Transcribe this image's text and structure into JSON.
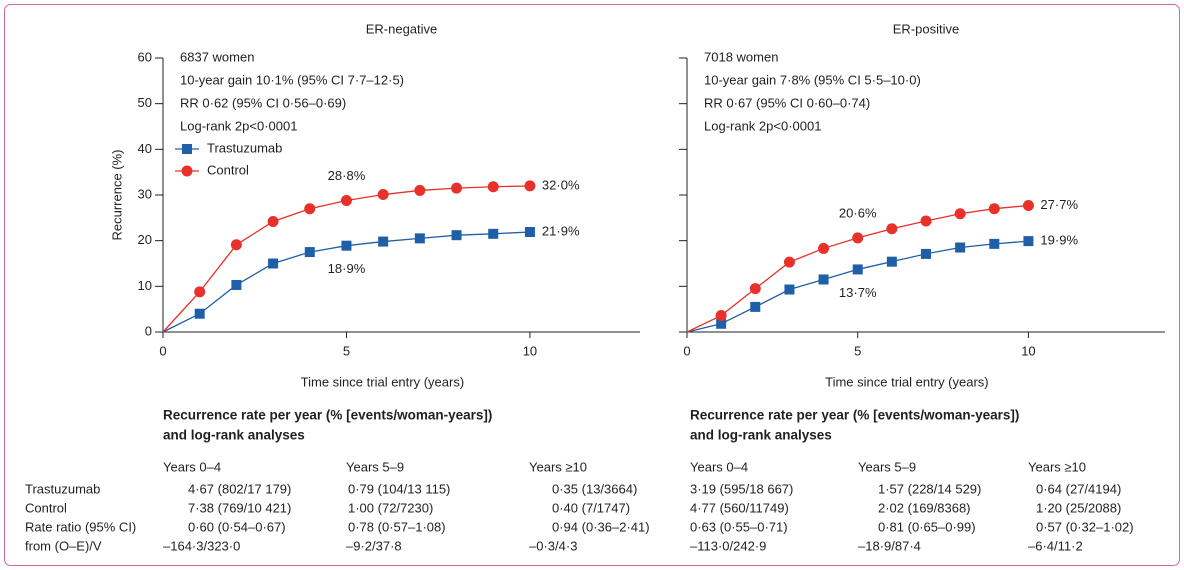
{
  "chart_data": [
    {
      "type": "line",
      "title": "ER-negative",
      "annotations": [
        "6837 women",
        "10-year gain 10·1% (95% CI 7·7–12·5)",
        "RR 0·62 (95% CI 0·56–0·69)",
        "Log-rank 2p<0·0001"
      ],
      "xlabel": "Time since trial entry (years)",
      "ylabel": "Recurrence (%)",
      "x": [
        0,
        1,
        2,
        3,
        4,
        5,
        6,
        7,
        8,
        9,
        10
      ],
      "series": [
        {
          "name": "Trastuzumab",
          "color": "#1f5fa8",
          "marker": "square",
          "values": [
            0,
            4,
            10.3,
            15,
            17.5,
            18.9,
            19.8,
            20.5,
            21.2,
            21.5,
            21.9
          ],
          "value_labels": [
            null,
            null,
            null,
            null,
            null,
            "18·9%",
            null,
            null,
            null,
            null,
            "21·9%"
          ]
        },
        {
          "name": "Control",
          "color": "#e8312a",
          "marker": "circle",
          "values": [
            0,
            8.8,
            19.1,
            24.2,
            27,
            28.8,
            30.1,
            31,
            31.5,
            31.8,
            32.0
          ],
          "value_labels": [
            null,
            null,
            null,
            null,
            null,
            "28·8%",
            null,
            null,
            null,
            null,
            "32·0%"
          ]
        }
      ],
      "xlim": [
        0,
        13
      ],
      "ylim": [
        0,
        60
      ],
      "xticks": [
        0,
        5,
        10
      ],
      "yticks": [
        0,
        10,
        20,
        30,
        40,
        50,
        60
      ],
      "show_ytick_labels": true,
      "legend": true
    },
    {
      "type": "line",
      "title": "ER-positive",
      "annotations": [
        "7018 women",
        "10-year gain 7·8% (95% CI 5·5–10·0)",
        "RR 0·67 (95% CI 0·60–0·74)",
        "Log-rank 2p<0·0001"
      ],
      "xlabel": "Time since trial entry (years)",
      "x": [
        0,
        1,
        2,
        3,
        4,
        5,
        6,
        7,
        8,
        9,
        10
      ],
      "series": [
        {
          "name": "Trastuzumab",
          "color": "#1f5fa8",
          "marker": "square",
          "values": [
            0,
            1.8,
            5.5,
            9.3,
            11.5,
            13.7,
            15.4,
            17.1,
            18.5,
            19.3,
            19.9
          ],
          "value_labels": [
            null,
            null,
            null,
            null,
            null,
            "13·7%",
            null,
            null,
            null,
            null,
            "19·9%"
          ]
        },
        {
          "name": "Control",
          "color": "#e8312a",
          "marker": "circle",
          "values": [
            0,
            3.6,
            9.5,
            15.3,
            18.3,
            20.6,
            22.6,
            24.3,
            25.9,
            27,
            27.7
          ],
          "value_labels": [
            null,
            null,
            null,
            null,
            null,
            "20·6%",
            null,
            null,
            null,
            null,
            "27·7%"
          ]
        }
      ],
      "xlim": [
        0,
        14
      ],
      "ylim": [
        0,
        60
      ],
      "xticks": [
        0,
        5,
        10
      ],
      "yticks": [
        0,
        10,
        20,
        30,
        40,
        50,
        60
      ],
      "show_ytick_labels": false,
      "legend": false
    }
  ],
  "table": {
    "row_labels": [
      "Trastuzumab",
      "Control",
      "Rate ratio (95% CI)",
      "from (O–E)/V"
    ],
    "panels": [
      {
        "title_lines": [
          "Recurrence rate per year (% [events/woman-years])",
          "and log-rank analyses"
        ],
        "columns": [
          "Years 0–4",
          "Years 5–9",
          "Years ≥10"
        ],
        "rows": [
          [
            "4·67 (802/17 179)",
            "0·79 (104/13 115)",
            "0·35 (13/3664)"
          ],
          [
            "7·38 (769/10 421)",
            "1·00 (72/7230)",
            "0·40 (7/1747)"
          ],
          [
            "0·60 (0·54–0·67)",
            "0·78 (0·57–1·08)",
            "0·94 (0·36–2·41)"
          ],
          [
            "–164·3/323·0",
            "–9·2/37·8",
            "–0·3/4·3"
          ]
        ]
      },
      {
        "title_lines": [
          "Recurrence rate per year (% [events/woman-years])",
          "and log-rank analyses"
        ],
        "columns": [
          "Years 0–4",
          "Years 5–9",
          "Years ≥10"
        ],
        "rows": [
          [
            "3·19 (595/18 667)",
            "1·57 (228/14 529)",
            "0·64 (27/4194)"
          ],
          [
            "4·77 (560/11749)",
            "2·02 (169/8368)",
            "1·20 (25/2088)"
          ],
          [
            "0·63 (0·55–0·71)",
            "0·81 (0·65–0·99)",
            "0·57 (0·32–1·02)"
          ],
          [
            "–113·0/242·9",
            "–18·9/87·4",
            "–6·4/11·2"
          ]
        ]
      }
    ]
  }
}
